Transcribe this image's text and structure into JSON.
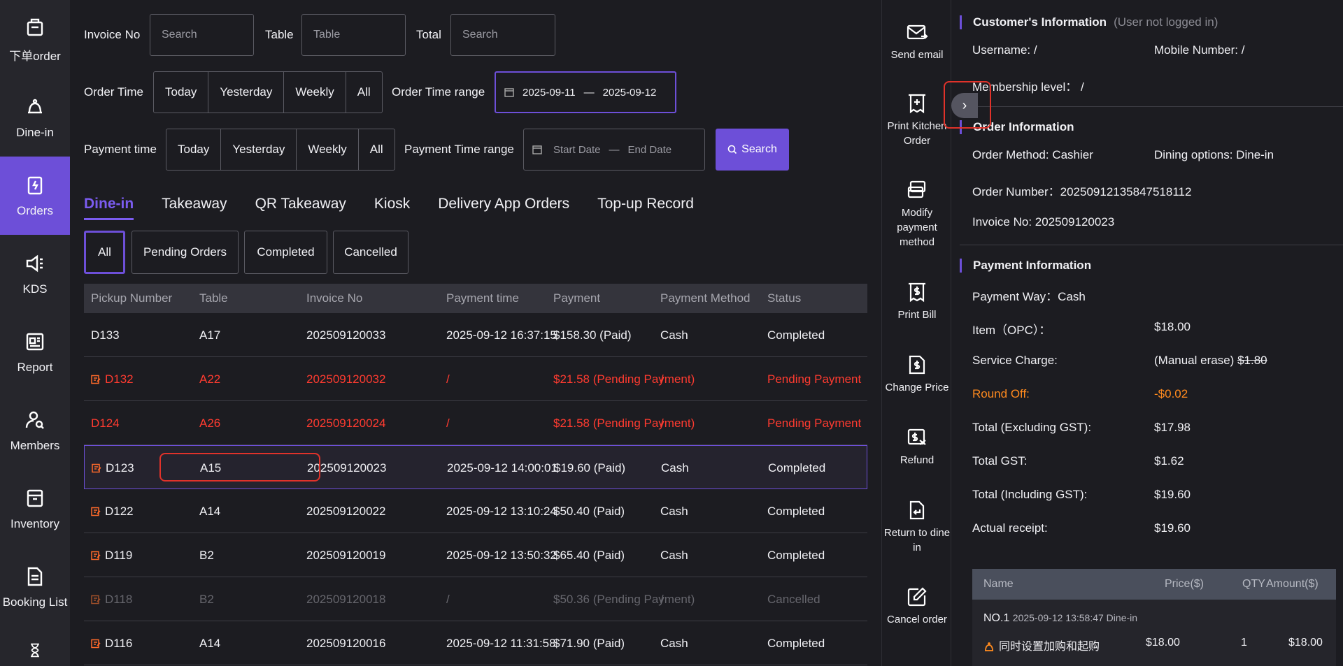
{
  "nav": [
    {
      "label": "下单order",
      "icon": "bag-icon"
    },
    {
      "label": "Dine-in",
      "icon": "bell-icon"
    },
    {
      "label": "Orders",
      "icon": "clipboard-icon",
      "active": true
    },
    {
      "label": "KDS",
      "icon": "speaker-icon"
    },
    {
      "label": "Report",
      "icon": "report-icon"
    },
    {
      "label": "Members",
      "icon": "member-icon"
    },
    {
      "label": "Inventory",
      "icon": "box-icon"
    },
    {
      "label": "Booking List",
      "icon": "document-icon"
    },
    {
      "label": "",
      "icon": "hourglass-icon"
    }
  ],
  "filters": {
    "invoice_label": "Invoice No",
    "invoice_placeholder": "Search",
    "table_label": "Table",
    "table_placeholder": "Table",
    "total_label": "Total",
    "total_placeholder": "Search",
    "order_time_label": "Order Time",
    "order_time_options": [
      "Today",
      "Yesterday",
      "Weekly",
      "All"
    ],
    "order_range_label": "Order Time range",
    "order_range_start": "2025-09-11",
    "order_range_sep": "—",
    "order_range_end": "2025-09-12",
    "payment_time_label": "Payment time",
    "payment_time_options": [
      "Today",
      "Yesterday",
      "Weekly",
      "All"
    ],
    "payment_range_label": "Payment Time range",
    "payment_range_start": "Start Date",
    "payment_range_sep": "—",
    "payment_range_end": "End Date",
    "search_label": "Search"
  },
  "tabs": [
    "Dine-in",
    "Takeaway",
    "QR Takeaway",
    "Kiosk",
    "Delivery App Orders",
    "Top-up Record"
  ],
  "subtabs": [
    "All",
    "Pending Orders",
    "Completed",
    "Cancelled"
  ],
  "table": {
    "headers": [
      "Pickup Number",
      "Table",
      "Invoice No",
      "Payment time",
      "Payment",
      "Payment Method",
      "Status"
    ],
    "rows": [
      {
        "pickup": "D133",
        "table": "A17",
        "invoice": "202509120033",
        "time": "2025-09-12 16:37:15",
        "payment": "$158.30 (Paid)",
        "method": "Cash",
        "status": "Completed",
        "state": "normal",
        "icon": false
      },
      {
        "pickup": "D132",
        "table": "A22",
        "invoice": "202509120032",
        "time": "/",
        "payment": "$21.58 (Pending Payment)",
        "method": "/",
        "status": "Pending Payment",
        "state": "pending",
        "icon": true
      },
      {
        "pickup": "D124",
        "table": "A26",
        "invoice": "202509120024",
        "time": "/",
        "payment": "$21.58 (Pending Payment)",
        "method": "/",
        "status": "Pending Payment",
        "state": "pending",
        "icon": false
      },
      {
        "pickup": "D123",
        "table": "A15",
        "invoice": "202509120023",
        "time": "2025-09-12 14:00:01",
        "payment": "$19.60 (Paid)",
        "method": "Cash",
        "status": "Completed",
        "state": "selected",
        "icon": true
      },
      {
        "pickup": "D122",
        "table": "A14",
        "invoice": "202509120022",
        "time": "2025-09-12 13:10:24",
        "payment": "$50.40 (Paid)",
        "method": "Cash",
        "status": "Completed",
        "state": "normal",
        "icon": true
      },
      {
        "pickup": "D119",
        "table": "B2",
        "invoice": "202509120019",
        "time": "2025-09-12 13:50:32",
        "payment": "$65.40 (Paid)",
        "method": "Cash",
        "status": "Completed",
        "state": "normal",
        "icon": true
      },
      {
        "pickup": "D118",
        "table": "B2",
        "invoice": "202509120018",
        "time": "/",
        "payment": "$50.36 (Pending Payment)",
        "method": "/",
        "status": "Cancelled",
        "state": "cancelled",
        "icon": true
      },
      {
        "pickup": "D116",
        "table": "A14",
        "invoice": "202509120016",
        "time": "2025-09-12 11:31:58",
        "payment": "$71.90 (Paid)",
        "method": "Cash",
        "status": "Completed",
        "state": "normal",
        "icon": true
      }
    ]
  },
  "actions": [
    {
      "label": "Send email",
      "icon": "mail-icon"
    },
    {
      "label": "Print Kitchen Order",
      "icon": "kitchen-print-icon"
    },
    {
      "label": "Modify payment method",
      "icon": "card-icon"
    },
    {
      "label": "Print Bill",
      "icon": "bill-icon"
    },
    {
      "label": "Change Price",
      "icon": "price-icon"
    },
    {
      "label": "Refund",
      "icon": "refund-icon"
    },
    {
      "label": "Return to dine in",
      "icon": "return-icon"
    },
    {
      "label": "Cancel order",
      "icon": "edit-icon"
    }
  ],
  "info": {
    "customer_title": "Customer's Information",
    "customer_note": "(User not logged in)",
    "username": "Username: /",
    "mobile": "Mobile Number: /",
    "membership": "Membership level： /",
    "order_title": "Order Information",
    "order_method": "Order Method: Cashier",
    "dining": "Dining options: Dine-in",
    "order_number": "Order Number：20250912135847518112",
    "invoice": "Invoice No: 202509120023",
    "payment_title": "Payment Information",
    "payment_way": "Payment Way：Cash",
    "item_label": "Item（OPC）：",
    "item_value": "$18.00",
    "service_label": "Service Charge:",
    "service_note": "(Manual erase)",
    "service_value": "$1.80",
    "round_label": "Round Off:",
    "round_value": "-$0.02",
    "excl_label": "Total (Excluding GST):",
    "excl_value": "$17.98",
    "gst_label": "Total GST:",
    "gst_value": "$1.62",
    "incl_label": "Total (Including GST):",
    "incl_value": "$19.60",
    "actual_label": "Actual receipt:",
    "actual_value": "$19.60"
  },
  "items": {
    "headers": [
      "Name",
      "Price($)",
      "QTY",
      "Amount($)"
    ],
    "no": "NO.1",
    "meta": "2025-09-12 13:58:47 Dine-in",
    "name": "同时设置加购和起购",
    "price": "$18.00",
    "qty": "1",
    "amount": "$18.00"
  },
  "colors": {
    "accent": "#6d4fd8",
    "pending": "#ff3b30",
    "round_off": "#ff8a1e"
  }
}
